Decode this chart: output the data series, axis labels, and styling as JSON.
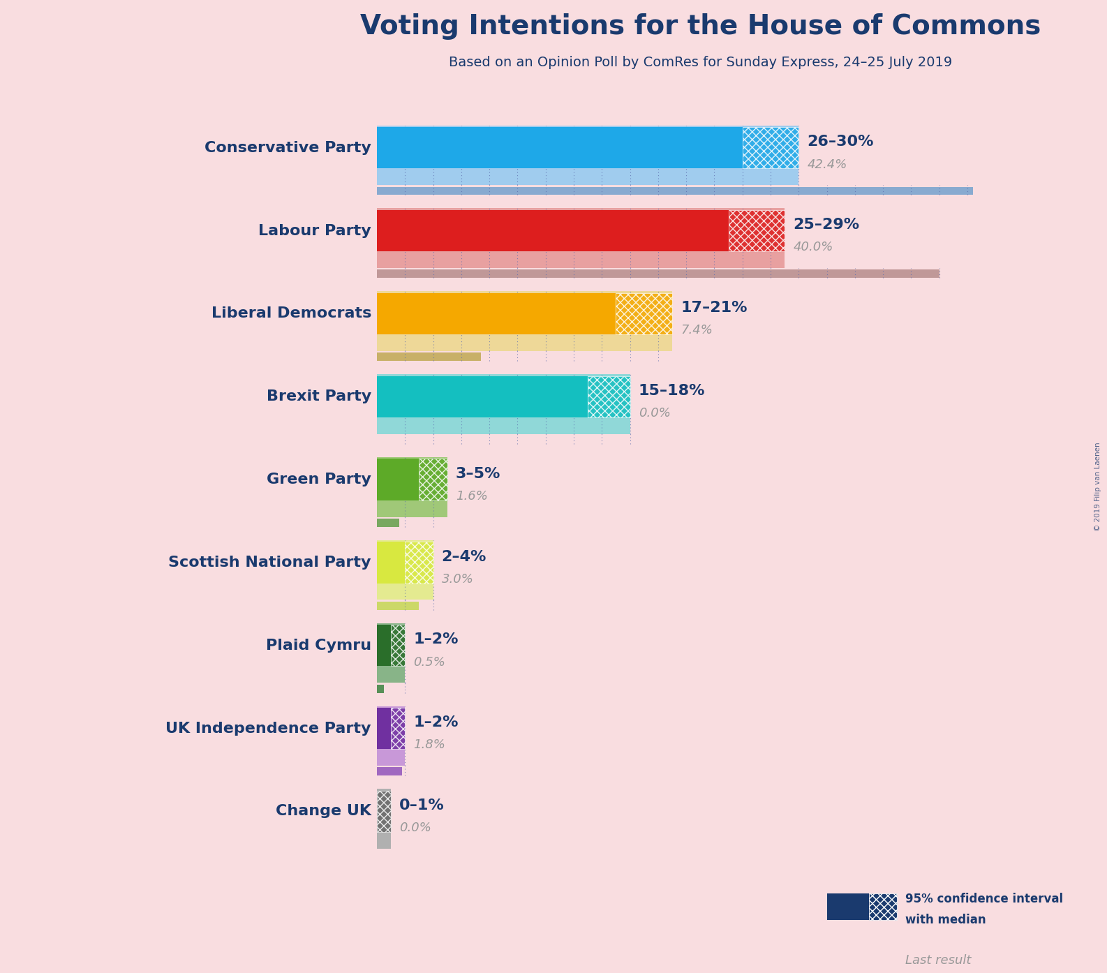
{
  "title": "Voting Intentions for the House of Commons",
  "subtitle": "Based on an Opinion Poll by ComRes for Sunday Express, 24–25 July 2019",
  "copyright": "© 2019 Filip van Laenen",
  "background_color": "#f9dde0",
  "parties": [
    "Conservative Party",
    "Labour Party",
    "Liberal Democrats",
    "Brexit Party",
    "Green Party",
    "Scottish National Party",
    "Plaid Cymru",
    "UK Independence Party",
    "Change UK"
  ],
  "bar_colors": [
    "#1ea8e8",
    "#dd1e1e",
    "#f5a800",
    "#14bfc0",
    "#5daa28",
    "#d8e840",
    "#2a6e2a",
    "#7030a0",
    "#666666"
  ],
  "ci_colors": [
    "#a0ccee",
    "#e8a0a0",
    "#eed898",
    "#90d8d8",
    "#a0c878",
    "#e4ea90",
    "#88b488",
    "#c898d8",
    "#b0b0b0"
  ],
  "last_result_colors": [
    "#88aad0",
    "#c09898",
    "#c8b068",
    "#78c0c0",
    "#78a860",
    "#ccd868",
    "#589058",
    "#a068c0",
    "#989898"
  ],
  "low": [
    26,
    25,
    17,
    15,
    3,
    2,
    1,
    1,
    0
  ],
  "high": [
    30,
    29,
    21,
    18,
    5,
    4,
    2,
    2,
    1
  ],
  "last_result": [
    42.4,
    40.0,
    7.4,
    0.0,
    1.6,
    3.0,
    0.5,
    1.8,
    0.0
  ],
  "range_labels": [
    "26–30%",
    "25–29%",
    "17–21%",
    "15–18%",
    "3–5%",
    "2–4%",
    "1–2%",
    "1–2%",
    "0–1%"
  ],
  "last_result_label_color": "#999999",
  "title_color": "#1a3a6e",
  "party_label_color": "#1a3a6e",
  "legend_dark_color": "#1a3a6e",
  "dot_line_color": "#6070b0",
  "xlim_max": 50
}
